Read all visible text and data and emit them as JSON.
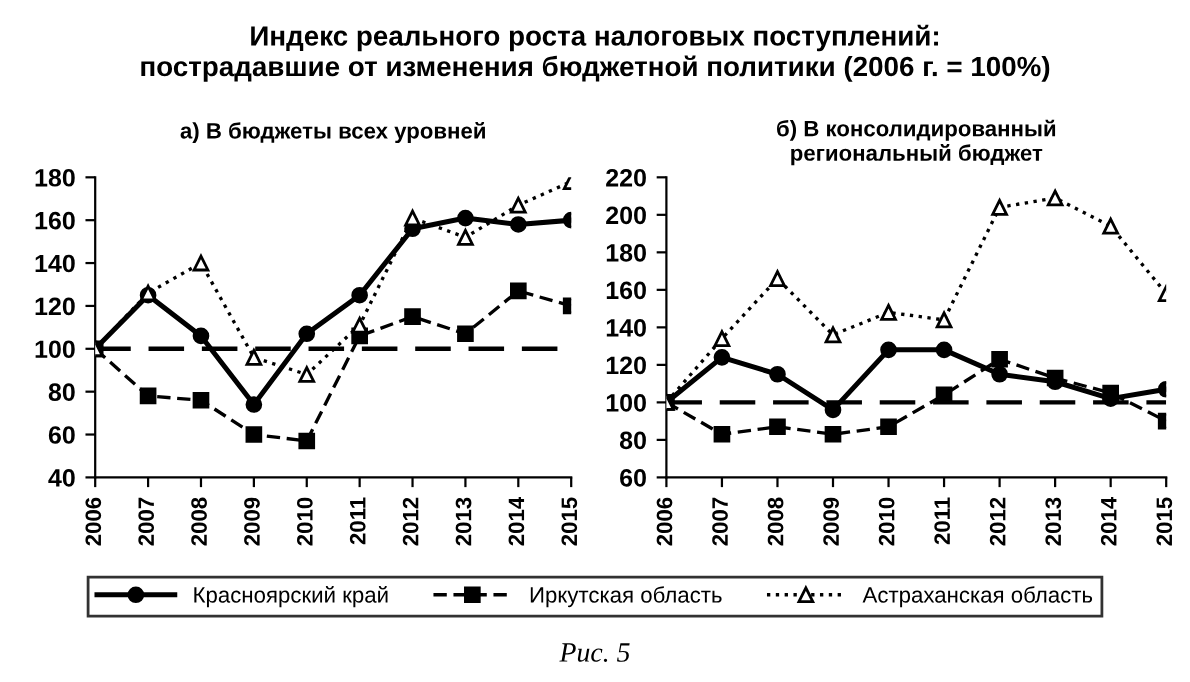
{
  "chart_data": [
    {
      "type": "line",
      "title": "Индекс реального роста налоговых поступлений:\nпострадавшие от изменения бюджетной политики (2006 г. = 100%)",
      "subtitle": "а) В бюджеты всех уровней",
      "categories": [
        "2006",
        "2007",
        "2008",
        "2009",
        "2010",
        "2011",
        "2012",
        "2013",
        "2014",
        "2015"
      ],
      "series": [
        {
          "name": "Красноярский край",
          "color": "#000000",
          "marker": "circle",
          "line_style": "solid",
          "values": [
            100,
            125,
            106,
            74,
            107,
            125,
            156,
            161,
            158,
            160
          ]
        },
        {
          "name": "Иркутская область",
          "color": "#000000",
          "marker": "square",
          "line_style": "dashed",
          "values": [
            100,
            78,
            76,
            60,
            57,
            106,
            115,
            107,
            127,
            120
          ]
        },
        {
          "name": "Астраханская область",
          "color": "#000000",
          "marker": "triangle",
          "line_style": "dotted",
          "values": [
            100,
            126,
            140,
            96,
            88,
            111,
            161,
            152,
            167,
            178
          ]
        }
      ],
      "ylim": [
        40,
        180
      ],
      "yticks": [
        40,
        60,
        80,
        100,
        120,
        140,
        160,
        180
      ],
      "ref_lines": [
        {
          "axis": "y",
          "value": 100,
          "color": "#000000",
          "line_style": "dashed"
        }
      ],
      "grid": false,
      "legend": "bottom",
      "annotations": [
        "Рис. 5"
      ]
    },
    {
      "type": "line",
      "title": "б) В консолидированный\nрегиональный бюджет",
      "categories": [
        "2006",
        "2007",
        "2008",
        "2009",
        "2010",
        "2011",
        "2012",
        "2013",
        "2014",
        "2015"
      ],
      "series": [
        {
          "color": "#000000",
          "marker": "circle",
          "line_style": "solid",
          "values": [
            100,
            124,
            115,
            96,
            128,
            128,
            115,
            111,
            102,
            107
          ]
        },
        {
          "color": "#000000",
          "marker": "square",
          "line_style": "dashed",
          "values": [
            100,
            83,
            87,
            83,
            87,
            104,
            123,
            113,
            105,
            90
          ]
        },
        {
          "color": "#000000",
          "marker": "triangle",
          "line_style": "dotted",
          "values": [
            100,
            134,
            166,
            136,
            148,
            144,
            204,
            209,
            194,
            158
          ]
        }
      ],
      "ylim": [
        60,
        220
      ],
      "yticks": [
        60,
        80,
        100,
        120,
        140,
        160,
        180,
        200,
        220
      ],
      "ref_lines": [
        {
          "axis": "y",
          "value": 100,
          "color": "#000000",
          "line_style": "dashed"
        }
      ],
      "grid": false
    }
  ]
}
